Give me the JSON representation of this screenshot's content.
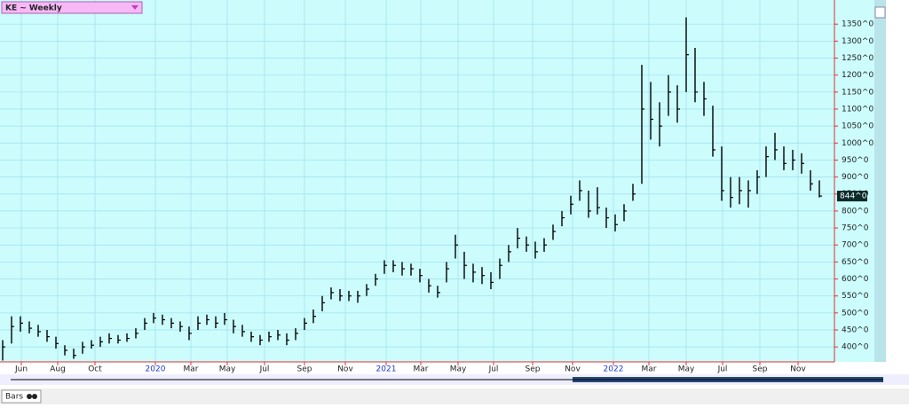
{
  "chart_data": {
    "type": "hlc",
    "title": "KE ~ Weekly",
    "tab_label": "Bars",
    "last_price_label": "844^0",
    "series": [
      {
        "name": "KE",
        "color": "#000000",
        "high": [
          420,
          490,
          490,
          475,
          465,
          450,
          430,
          405,
          395,
          415,
          420,
          430,
          440,
          435,
          440,
          455,
          485,
          500,
          495,
          485,
          475,
          460,
          490,
          495,
          490,
          500,
          480,
          465,
          445,
          435,
          445,
          450,
          440,
          455,
          485,
          510,
          550,
          575,
          570,
          565,
          565,
          585,
          615,
          655,
          655,
          650,
          645,
          630,
          600,
          580,
          650,
          730,
          680,
          645,
          635,
          620,
          660,
          700,
          750,
          725,
          710,
          720,
          760,
          800,
          845,
          890,
          860,
          870,
          810,
          790,
          820,
          880,
          1230,
          1180,
          1120,
          1200,
          1170,
          1370,
          1280,
          1180,
          1110,
          990,
          900,
          900,
          890,
          920,
          990,
          1030,
          990,
          980,
          970,
          920,
          890
        ],
        "low": [
          360,
          410,
          445,
          440,
          430,
          415,
          395,
          375,
          365,
          380,
          395,
          400,
          410,
          410,
          415,
          425,
          450,
          470,
          465,
          455,
          445,
          420,
          450,
          465,
          455,
          465,
          440,
          430,
          415,
          405,
          415,
          420,
          405,
          420,
          450,
          470,
          505,
          540,
          535,
          535,
          530,
          550,
          580,
          615,
          620,
          610,
          610,
          590,
          560,
          545,
          590,
          660,
          600,
          590,
          585,
          570,
          600,
          650,
          690,
          680,
          660,
          680,
          715,
          755,
          790,
          830,
          780,
          790,
          750,
          740,
          770,
          830,
          880,
          1010,
          990,
          1080,
          1060,
          1150,
          1120,
          1080,
          960,
          830,
          810,
          820,
          810,
          850,
          900,
          950,
          920,
          920,
          910,
          860,
          840
        ],
        "close": [
          400,
          460,
          470,
          455,
          445,
          430,
          410,
          390,
          375,
          400,
          405,
          415,
          425,
          420,
          425,
          440,
          470,
          485,
          480,
          470,
          460,
          440,
          470,
          480,
          470,
          480,
          460,
          445,
          430,
          420,
          430,
          435,
          420,
          440,
          470,
          490,
          530,
          560,
          550,
          550,
          550,
          570,
          600,
          640,
          640,
          630,
          630,
          610,
          580,
          560,
          630,
          700,
          640,
          620,
          610,
          590,
          640,
          680,
          720,
          700,
          680,
          700,
          740,
          780,
          820,
          860,
          800,
          810,
          780,
          760,
          800,
          850,
          1100,
          1070,
          1050,
          1150,
          1100,
          1260,
          1150,
          1130,
          980,
          860,
          840,
          860,
          860,
          900,
          960,
          980,
          940,
          950,
          940,
          880,
          844
        ]
      }
    ],
    "xlim": [
      -0.3,
      93.7
    ],
    "xticks": [
      {
        "value": 2.1,
        "label": "Jun"
      },
      {
        "value": 6.2,
        "label": "Aug"
      },
      {
        "value": 10.4,
        "label": "Oct"
      },
      {
        "value": 17.2,
        "label": "2020"
      },
      {
        "value": 21.2,
        "label": "Mar"
      },
      {
        "value": 25.3,
        "label": "May"
      },
      {
        "value": 29.5,
        "label": "Jul"
      },
      {
        "value": 34,
        "label": "Sep"
      },
      {
        "value": 38.6,
        "label": "Nov"
      },
      {
        "value": 43.2,
        "label": "2021"
      },
      {
        "value": 47.1,
        "label": "Mar"
      },
      {
        "value": 51.3,
        "label": "May"
      },
      {
        "value": 55.3,
        "label": "Jul"
      },
      {
        "value": 59.7,
        "label": "Sep"
      },
      {
        "value": 64.2,
        "label": "Nov"
      },
      {
        "value": 68.8,
        "label": "2022"
      },
      {
        "value": 72.8,
        "label": "Mar"
      },
      {
        "value": 77,
        "label": "May"
      },
      {
        "value": 81.1,
        "label": "Jul"
      },
      {
        "value": 85.3,
        "label": "Sep"
      },
      {
        "value": 89.6,
        "label": "Nov"
      }
    ],
    "ylim": [
      356,
      1421
    ],
    "yticks": [
      {
        "value": 400,
        "label": "400^0"
      },
      {
        "value": 450,
        "label": "450^0"
      },
      {
        "value": 500,
        "label": "500^0"
      },
      {
        "value": 550,
        "label": "550^0"
      },
      {
        "value": 600,
        "label": "600^0"
      },
      {
        "value": 650,
        "label": "650^0"
      },
      {
        "value": 700,
        "label": "700^0"
      },
      {
        "value": 750,
        "label": "750^0"
      },
      {
        "value": 800,
        "label": "800^0"
      },
      {
        "value": 850,
        "label": "850^0"
      },
      {
        "value": 900,
        "label": "900^0"
      },
      {
        "value": 950,
        "label": "950^0"
      },
      {
        "value": 1000,
        "label": "1000^0"
      },
      {
        "value": 1050,
        "label": "1050^0"
      },
      {
        "value": 1100,
        "label": "1100^0"
      },
      {
        "value": 1150,
        "label": "1150^0"
      },
      {
        "value": 1200,
        "label": "1200^0"
      },
      {
        "value": 1250,
        "label": "1250^0"
      },
      {
        "value": 1300,
        "label": "1300^0"
      },
      {
        "value": 1350,
        "label": "1350^0"
      }
    ],
    "grid": true,
    "background": "#ccfcfc"
  }
}
